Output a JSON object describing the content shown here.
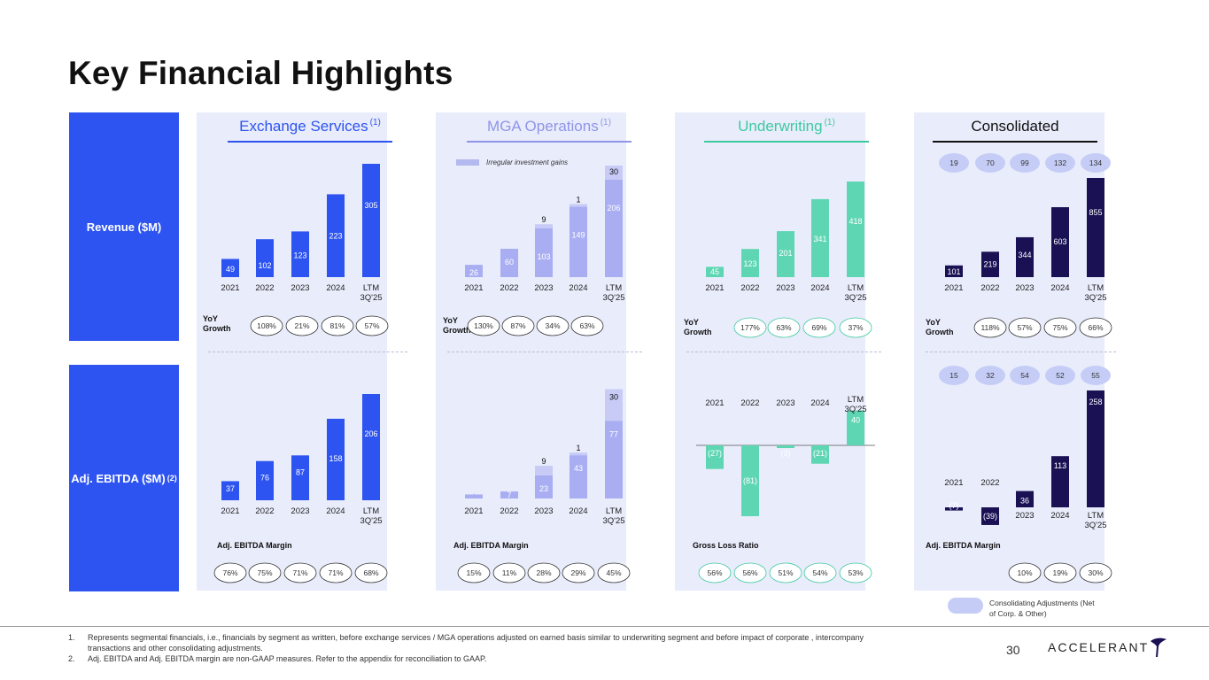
{
  "title": "Key Financial Highlights",
  "row_labels": {
    "revenue": "Revenue ($M)",
    "ebitda": "Adj. EBITDA ($M)",
    "ebitda_sup": "(2)"
  },
  "panels": {
    "exchange": {
      "title": "Exchange Services",
      "sup": "(1)",
      "yoy_label": "YoY Growth",
      "margin_label": "Adj. EBITDA Margin"
    },
    "mga": {
      "title": "MGA Operations",
      "sup": "(1)",
      "yoy_label": "YoY Growth",
      "margin_label": "Adj. EBITDA Margin",
      "legend": "Irregular investment gains"
    },
    "underwriting": {
      "title": "Underwriting",
      "sup": "(1)",
      "yoy_label": "YoY Growth",
      "margin_label": "Gross Loss Ratio"
    },
    "consolidated": {
      "title": "Consolidated",
      "yoy_label": "YoY Growth",
      "margin_label": "Adj. EBITDA Margin",
      "legend": "Consolidating Adjustments (Net of Corp. & Other)"
    }
  },
  "colors": {
    "blue": "#2d54f0",
    "lavender": "#a9aef2",
    "lavender_light": "#c8cbf6",
    "teal": "#5fd6b3",
    "navy": "#1a1154",
    "oval": "#c5cdf7"
  },
  "chart_data": [
    {
      "id": "exchange_revenue",
      "type": "bar",
      "title": "Exchange Services Revenue ($M)",
      "categories": [
        "2021",
        "2022",
        "2023",
        "2024",
        "LTM 3Q'25"
      ],
      "values": [
        49,
        102,
        123,
        223,
        305
      ],
      "yoy_growth": [
        "108%",
        "21%",
        "81%",
        "57%"
      ]
    },
    {
      "id": "mga_revenue",
      "type": "bar",
      "title": "MGA Operations Revenue ($M)",
      "categories": [
        "2021",
        "2022",
        "2023",
        "2024",
        "LTM 3Q'25"
      ],
      "series": [
        {
          "name": "Revenue",
          "values": [
            26,
            60,
            103,
            149,
            206
          ]
        },
        {
          "name": "Irregular investment gains",
          "values": [
            null,
            null,
            9,
            1,
            30
          ]
        }
      ],
      "yoy_growth": [
        "130%",
        "87%",
        "34%",
        "63%"
      ]
    },
    {
      "id": "underwriting_revenue",
      "type": "bar",
      "title": "Underwriting Revenue ($M)",
      "categories": [
        "2021",
        "2022",
        "2023",
        "2024",
        "LTM 3Q'25"
      ],
      "values": [
        45,
        123,
        201,
        341,
        418
      ],
      "yoy_growth": [
        "177%",
        "63%",
        "69%",
        "37%"
      ]
    },
    {
      "id": "consolidated_revenue",
      "type": "bar",
      "title": "Consolidated Revenue ($M)",
      "categories": [
        "2021",
        "2022",
        "2023",
        "2024",
        "LTM 3Q'25"
      ],
      "values": [
        101,
        219,
        344,
        603,
        855
      ],
      "consolidating_adjustments": [
        19,
        70,
        99,
        132,
        134
      ],
      "yoy_growth": [
        "118%",
        "57%",
        "75%",
        "66%"
      ]
    },
    {
      "id": "exchange_ebitda",
      "type": "bar",
      "title": "Exchange Services Adj. EBITDA ($M)",
      "categories": [
        "2021",
        "2022",
        "2023",
        "2024",
        "LTM 3Q'25"
      ],
      "values": [
        37,
        76,
        87,
        158,
        206
      ],
      "margins": [
        "76%",
        "75%",
        "71%",
        "71%",
        "68%"
      ]
    },
    {
      "id": "mga_ebitda",
      "type": "bar",
      "title": "MGA Operations Adj. EBITDA ($M)",
      "categories": [
        "2021",
        "2022",
        "2023",
        "2024",
        "LTM 3Q'25"
      ],
      "series": [
        {
          "name": "Adj. EBITDA",
          "values": [
            4,
            7,
            23,
            43,
            77
          ],
          "labels": [
            "4",
            "7",
            "23",
            "43",
            "77"
          ]
        },
        {
          "name": "Irregular investment gains",
          "values": [
            null,
            null,
            9,
            1,
            30
          ]
        }
      ],
      "margins": [
        "15%",
        "11%",
        "28%",
        "29%",
        "45%"
      ]
    },
    {
      "id": "underwriting_ebitda",
      "type": "bar",
      "title": "Underwriting Adj. EBITDA ($M)",
      "categories": [
        "2021",
        "2022",
        "2023",
        "2024",
        "LTM 3Q'25"
      ],
      "values": [
        -27,
        -81,
        -3,
        -21,
        40
      ],
      "labels": [
        "(27)",
        "(81)",
        "(3)",
        "(21)",
        "40"
      ],
      "margins": [
        "56%",
        "56%",
        "51%",
        "54%",
        "53%"
      ]
    },
    {
      "id": "consolidated_ebitda",
      "type": "bar",
      "title": "Consolidated Adj. EBITDA ($M)",
      "categories": [
        "2021",
        "2022",
        "2023",
        "2024",
        "LTM 3Q'25"
      ],
      "values": [
        -7,
        -39,
        36,
        113,
        258
      ],
      "labels": [
        "(7)",
        "(39)",
        "36",
        "113",
        "258"
      ],
      "consolidating_adjustments": [
        15,
        32,
        54,
        52,
        55
      ],
      "margins": [
        "10%",
        "19%",
        "30%"
      ]
    }
  ],
  "footnotes": [
    {
      "num": "1.",
      "text": "Represents segmental financials, i.e., financials by segment as written, before exchange services / MGA operations adjusted on earned basis similar to underwriting segment and before impact of corporate , intercompany transactions and other consolidating adjustments."
    },
    {
      "num": "2.",
      "text": "Adj. EBITDA and Adj. EBITDA margin are non-GAAP measures. Refer to the appendix for reconciliation to GAAP."
    }
  ],
  "page_number": "30",
  "logo_text": "ACCELERANT"
}
